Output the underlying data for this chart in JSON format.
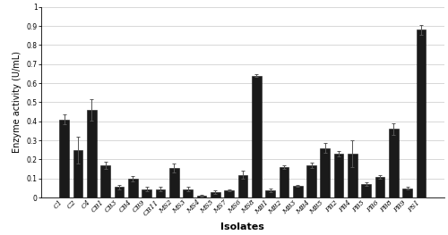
{
  "categories": [
    "C1",
    "C2",
    "C4",
    "CB1",
    "CB3",
    "CB4",
    "CB9",
    "CB11",
    "MS2",
    "MS3",
    "MS4",
    "MS5",
    "MS7",
    "MS6",
    "MS8",
    "MB1",
    "MB2",
    "MB3",
    "MB4",
    "MB5",
    "PB2",
    "PB4",
    "PB5",
    "PB6",
    "PB8",
    "PB9",
    "PS1"
  ],
  "values": [
    0.41,
    0.25,
    0.46,
    0.17,
    0.055,
    0.1,
    0.045,
    0.045,
    0.155,
    0.045,
    0.01,
    0.03,
    0.04,
    0.12,
    0.64,
    0.04,
    0.16,
    0.06,
    0.17,
    0.26,
    0.23,
    0.23,
    0.07,
    0.11,
    0.36,
    0.05,
    0.88
  ],
  "errors": [
    0.025,
    0.07,
    0.055,
    0.02,
    0.01,
    0.015,
    0.01,
    0.01,
    0.025,
    0.01,
    0.005,
    0.01,
    0.005,
    0.02,
    0.005,
    0.01,
    0.01,
    0.005,
    0.015,
    0.025,
    0.015,
    0.07,
    0.01,
    0.01,
    0.03,
    0.005,
    0.025
  ],
  "bar_color": "#1a1a1a",
  "error_color": "#555555",
  "xlabel": "Isolates",
  "ylabel": "Enzyme activity (U/mL)",
  "ylim": [
    0,
    1.0
  ],
  "yticks": [
    0,
    0.1,
    0.2,
    0.3,
    0.4,
    0.5,
    0.6,
    0.7,
    0.8,
    0.9,
    1
  ],
  "grid_color": "#c8c8c8",
  "background_color": "#ffffff",
  "xlabel_fontsize": 8,
  "ylabel_fontsize": 7,
  "tick_fontsize": 5.5
}
